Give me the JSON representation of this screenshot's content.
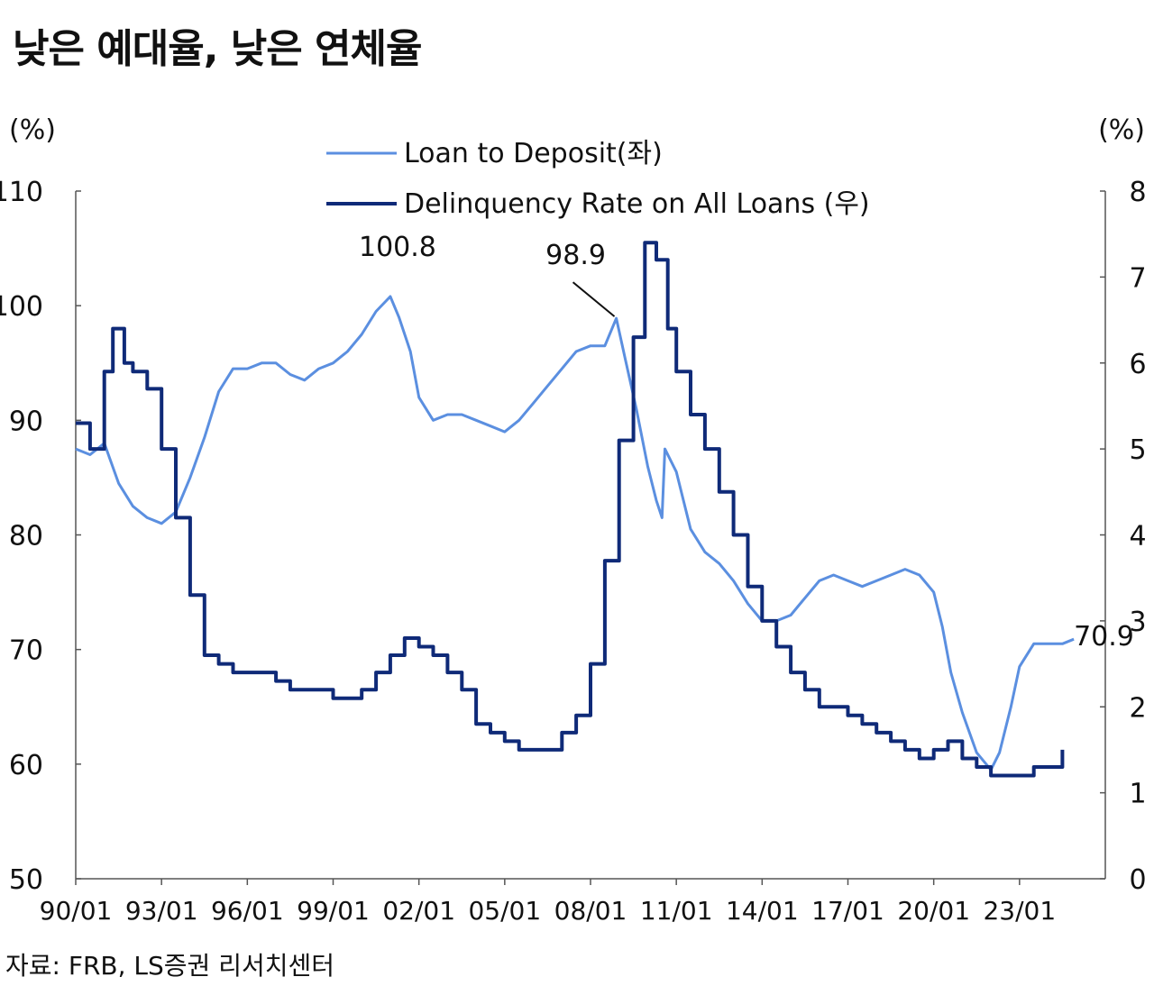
{
  "title": "낮은 예대율, 낮은 연체율",
  "source": "자료: FRB, LS증권 리서치센터",
  "colors": {
    "ltd": "#5b8fe0",
    "delinquency": "#0f2a78",
    "axis": "#555555"
  },
  "chart_data": {
    "type": "line",
    "title": "낮은 예대율, 낮은 연체율",
    "y_left": {
      "unit_label": "(%)",
      "min": 50,
      "max": 110,
      "ticks": [
        110,
        100,
        90,
        80,
        70,
        60,
        50
      ]
    },
    "y_right": {
      "unit_label": "(%)",
      "min": 0,
      "max": 8,
      "ticks": [
        8,
        7,
        6,
        5,
        4,
        3,
        2,
        1,
        0
      ]
    },
    "x_axis": {
      "min": 1990.0,
      "max": 2026.0,
      "ticks": [
        {
          "value": 1990,
          "label": "90/01"
        },
        {
          "value": 1993,
          "label": "93/01"
        },
        {
          "value": 1996,
          "label": "96/01"
        },
        {
          "value": 1999,
          "label": "99/01"
        },
        {
          "value": 2002,
          "label": "02/01"
        },
        {
          "value": 2005,
          "label": "05/01"
        },
        {
          "value": 2008,
          "label": "08/01"
        },
        {
          "value": 2011,
          "label": "11/01"
        },
        {
          "value": 2014,
          "label": "14/01"
        },
        {
          "value": 2017,
          "label": "17/01"
        },
        {
          "value": 2020,
          "label": "20/01"
        },
        {
          "value": 2023,
          "label": "23/01"
        }
      ]
    },
    "legend": {
      "placement": "top-center"
    },
    "series": [
      {
        "name": "Loan to Deposit(좌)",
        "axis": "left",
        "points": [
          [
            1990.0,
            87.5
          ],
          [
            1990.5,
            87.0
          ],
          [
            1991.0,
            88.0
          ],
          [
            1991.5,
            84.5
          ],
          [
            1992.0,
            82.5
          ],
          [
            1992.5,
            81.5
          ],
          [
            1993.0,
            81.0
          ],
          [
            1993.5,
            82.0
          ],
          [
            1994.0,
            85.0
          ],
          [
            1994.5,
            88.5
          ],
          [
            1995.0,
            92.5
          ],
          [
            1995.5,
            94.5
          ],
          [
            1996.0,
            94.5
          ],
          [
            1996.5,
            95.0
          ],
          [
            1997.0,
            95.0
          ],
          [
            1997.5,
            94.0
          ],
          [
            1998.0,
            93.5
          ],
          [
            1998.5,
            94.5
          ],
          [
            1999.0,
            95.0
          ],
          [
            1999.5,
            96.0
          ],
          [
            2000.0,
            97.5
          ],
          [
            2000.5,
            99.5
          ],
          [
            2001.0,
            100.8
          ],
          [
            2001.3,
            99.0
          ],
          [
            2001.7,
            96.0
          ],
          [
            2002.0,
            92.0
          ],
          [
            2002.5,
            90.0
          ],
          [
            2003.0,
            90.5
          ],
          [
            2003.5,
            90.5
          ],
          [
            2004.0,
            90.0
          ],
          [
            2004.5,
            89.5
          ],
          [
            2005.0,
            89.0
          ],
          [
            2005.5,
            90.0
          ],
          [
            2006.0,
            91.5
          ],
          [
            2006.5,
            93.0
          ],
          [
            2007.0,
            94.5
          ],
          [
            2007.5,
            96.0
          ],
          [
            2008.0,
            96.5
          ],
          [
            2008.5,
            96.5
          ],
          [
            2008.9,
            98.9
          ],
          [
            2009.2,
            95.5
          ],
          [
            2009.6,
            91.0
          ],
          [
            2010.0,
            86.0
          ],
          [
            2010.3,
            83.0
          ],
          [
            2010.5,
            81.5
          ],
          [
            2010.6,
            87.5
          ],
          [
            2011.0,
            85.5
          ],
          [
            2011.5,
            80.5
          ],
          [
            2012.0,
            78.5
          ],
          [
            2012.5,
            77.5
          ],
          [
            2013.0,
            76.0
          ],
          [
            2013.5,
            74.0
          ],
          [
            2014.0,
            72.5
          ],
          [
            2014.5,
            72.5
          ],
          [
            2015.0,
            73.0
          ],
          [
            2015.5,
            74.5
          ],
          [
            2016.0,
            76.0
          ],
          [
            2016.5,
            76.5
          ],
          [
            2017.0,
            76.0
          ],
          [
            2017.5,
            75.5
          ],
          [
            2018.0,
            76.0
          ],
          [
            2018.5,
            76.5
          ],
          [
            2019.0,
            77.0
          ],
          [
            2019.5,
            76.5
          ],
          [
            2020.0,
            75.0
          ],
          [
            2020.3,
            72.0
          ],
          [
            2020.6,
            68.0
          ],
          [
            2021.0,
            64.5
          ],
          [
            2021.5,
            61.0
          ],
          [
            2022.0,
            59.5
          ],
          [
            2022.3,
            61.0
          ],
          [
            2022.7,
            65.0
          ],
          [
            2023.0,
            68.5
          ],
          [
            2023.5,
            70.5
          ],
          [
            2024.0,
            70.5
          ],
          [
            2024.5,
            70.5
          ],
          [
            2024.9,
            70.9
          ]
        ]
      },
      {
        "name": "Delinquency Rate on All Loans (우)",
        "axis": "right",
        "points": [
          [
            1990.0,
            5.3
          ],
          [
            1990.5,
            5.0
          ],
          [
            1991.0,
            5.9
          ],
          [
            1991.3,
            6.4
          ],
          [
            1991.7,
            6.0
          ],
          [
            1992.0,
            5.9
          ],
          [
            1992.5,
            5.7
          ],
          [
            1993.0,
            5.0
          ],
          [
            1993.5,
            4.2
          ],
          [
            1994.0,
            3.3
          ],
          [
            1994.5,
            2.6
          ],
          [
            1995.0,
            2.5
          ],
          [
            1995.5,
            2.4
          ],
          [
            1996.0,
            2.4
          ],
          [
            1996.5,
            2.4
          ],
          [
            1997.0,
            2.3
          ],
          [
            1997.5,
            2.2
          ],
          [
            1998.0,
            2.2
          ],
          [
            1998.5,
            2.2
          ],
          [
            1999.0,
            2.1
          ],
          [
            1999.5,
            2.1
          ],
          [
            2000.0,
            2.2
          ],
          [
            2000.5,
            2.4
          ],
          [
            2001.0,
            2.6
          ],
          [
            2001.5,
            2.8
          ],
          [
            2002.0,
            2.7
          ],
          [
            2002.5,
            2.6
          ],
          [
            2003.0,
            2.4
          ],
          [
            2003.5,
            2.2
          ],
          [
            2004.0,
            1.8
          ],
          [
            2004.5,
            1.7
          ],
          [
            2005.0,
            1.6
          ],
          [
            2005.5,
            1.5
          ],
          [
            2006.0,
            1.5
          ],
          [
            2006.5,
            1.5
          ],
          [
            2007.0,
            1.7
          ],
          [
            2007.5,
            1.9
          ],
          [
            2008.0,
            2.5
          ],
          [
            2008.5,
            3.7
          ],
          [
            2009.0,
            5.1
          ],
          [
            2009.5,
            6.3
          ],
          [
            2009.9,
            7.4
          ],
          [
            2010.3,
            7.2
          ],
          [
            2010.7,
            6.4
          ],
          [
            2011.0,
            5.9
          ],
          [
            2011.5,
            5.4
          ],
          [
            2012.0,
            5.0
          ],
          [
            2012.5,
            4.5
          ],
          [
            2013.0,
            4.0
          ],
          [
            2013.5,
            3.4
          ],
          [
            2014.0,
            3.0
          ],
          [
            2014.5,
            2.7
          ],
          [
            2015.0,
            2.4
          ],
          [
            2015.5,
            2.2
          ],
          [
            2016.0,
            2.0
          ],
          [
            2016.5,
            2.0
          ],
          [
            2017.0,
            1.9
          ],
          [
            2017.5,
            1.8
          ],
          [
            2018.0,
            1.7
          ],
          [
            2018.5,
            1.6
          ],
          [
            2019.0,
            1.5
          ],
          [
            2019.5,
            1.4
          ],
          [
            2020.0,
            1.5
          ],
          [
            2020.5,
            1.6
          ],
          [
            2021.0,
            1.4
          ],
          [
            2021.5,
            1.3
          ],
          [
            2022.0,
            1.2
          ],
          [
            2022.5,
            1.2
          ],
          [
            2023.0,
            1.2
          ],
          [
            2023.5,
            1.3
          ],
          [
            2024.0,
            1.3
          ],
          [
            2024.5,
            1.5
          ]
        ]
      }
    ],
    "annotations": [
      {
        "label": "100.8",
        "series": 0,
        "x": 2001.0,
        "y": 100.8
      },
      {
        "label": "98.9",
        "series": 0,
        "x": 2008.9,
        "y": 98.9,
        "leader": true
      },
      {
        "label": "70.9",
        "series": 0,
        "x": 2024.9,
        "y": 70.9
      }
    ]
  }
}
